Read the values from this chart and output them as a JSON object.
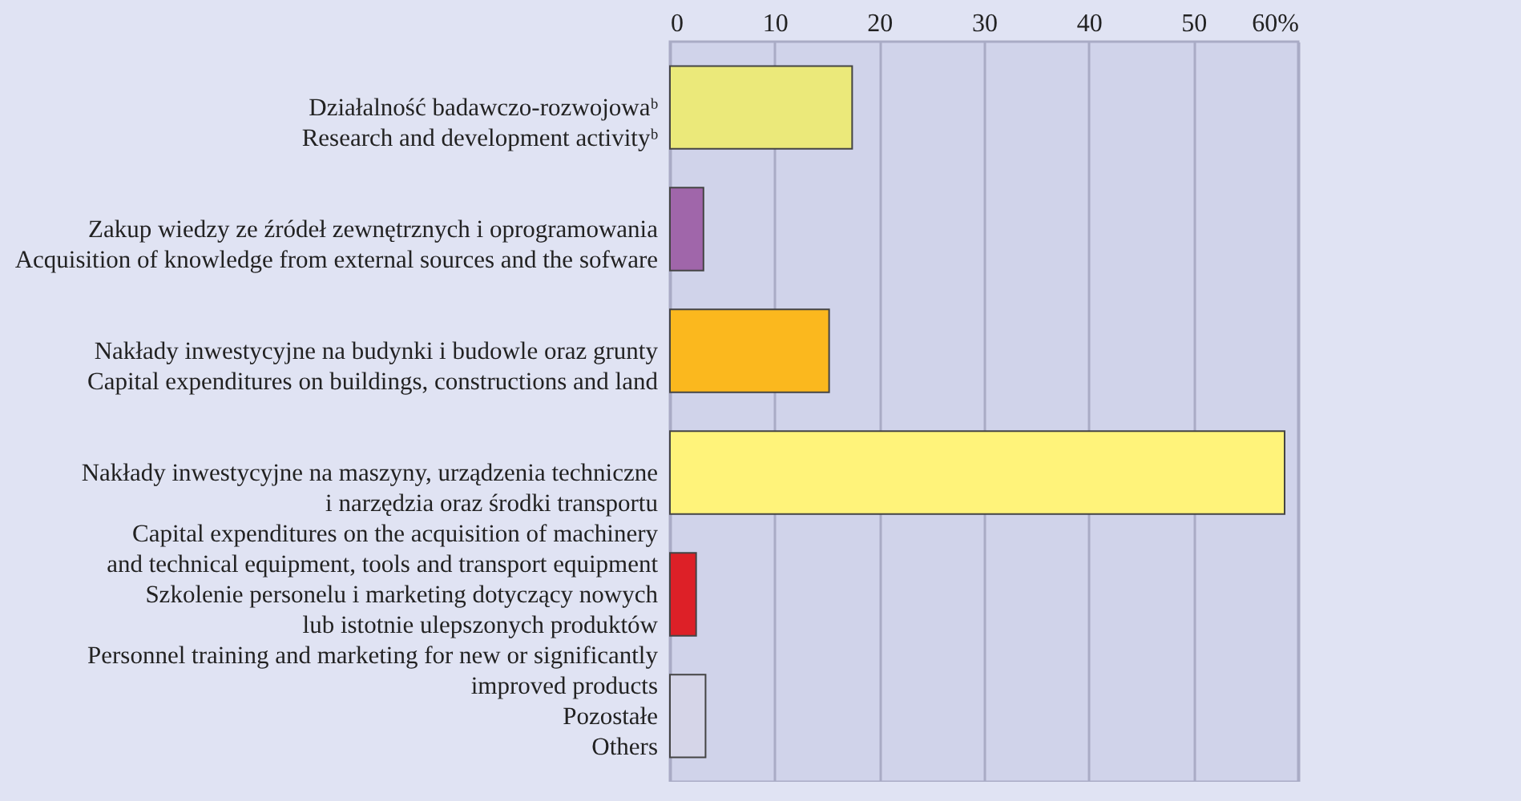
{
  "chart_data": {
    "type": "bar",
    "orientation": "horizontal",
    "categories": [
      "Działalność badawczo-rozwojowaᵇ\nResearch and development activityᵇ",
      "Zakup wiedzy ze źródeł zewnętrznych i oprogramowania\nAcquisition of knowledge from external sources and the sofware",
      "Nakłady inwestycyjne na budynki i budowle oraz grunty\nCapital expenditures on buildings, constructions and land",
      "Nakłady inwestycyjne na maszyny, urządzenia techniczne\ni narzędzia oraz środki transportu\nCapital expenditures on the acquisition of machinery\nand technical equipment, tools and transport equipment",
      "Szkolenie personelu i marketing dotyczący nowych\nlub istotnie ulepszonych produktów\nPersonnel training and marketing for new or significantly\nimproved products",
      "Pozostałe\nOthers"
    ],
    "values": [
      17.4,
      3.2,
      15.2,
      58.7,
      2.5,
      3.4
    ],
    "colors": [
      "#ebe97a",
      "#a066aa",
      "#fbb81e",
      "#fff37a",
      "#dd2027",
      "#d5d5e8"
    ],
    "xlim": [
      0,
      60
    ],
    "xticks": [
      0,
      10,
      20,
      30,
      40,
      50,
      {
        "value": 60,
        "label": "60%"
      }
    ],
    "grid": "x",
    "legend": false
  }
}
